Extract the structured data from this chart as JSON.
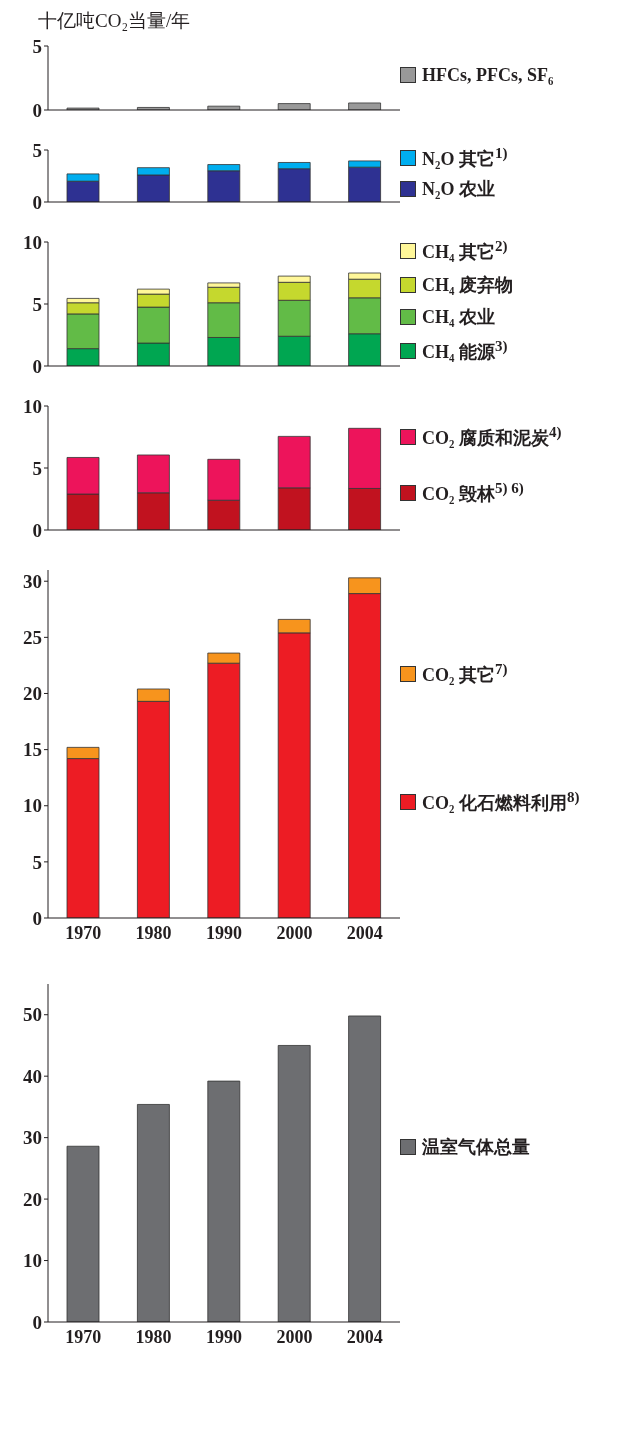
{
  "chart_data": [
    {
      "type": "bar",
      "stacked": true,
      "ylabel": "十亿吨CO₂当量/年",
      "categories": [
        "1970",
        "1980",
        "1990",
        "2000",
        "2004"
      ],
      "ylim": [
        0,
        5
      ],
      "yticks": [
        0,
        5
      ],
      "tick_labels": "y",
      "legend": "right",
      "series": [
        {
          "name": "HFCs, PFCs, SF₆",
          "color": "#999999",
          "values": [
            0.15,
            0.2,
            0.3,
            0.5,
            0.55
          ]
        }
      ]
    },
    {
      "type": "bar",
      "stacked": true,
      "categories": [
        "1970",
        "1980",
        "1990",
        "2000",
        "2004"
      ],
      "ylim": [
        0,
        5
      ],
      "yticks": [
        0,
        5
      ],
      "tick_labels": "y",
      "legend": "right",
      "series": [
        {
          "name": "N₂O 农业",
          "color": "#2e3192",
          "values": [
            2.0,
            2.6,
            3.0,
            3.2,
            3.35
          ]
        },
        {
          "name": "N₂O 其它$^{1)}$",
          "color": "#00aeef",
          "values": [
            0.7,
            0.7,
            0.6,
            0.6,
            0.6
          ]
        }
      ]
    },
    {
      "type": "bar",
      "stacked": true,
      "categories": [
        "1970",
        "1980",
        "1990",
        "2000",
        "2004"
      ],
      "ylim": [
        0,
        10
      ],
      "yticks": [
        0,
        5,
        10
      ],
      "tick_labels": "y",
      "legend": "right",
      "series": [
        {
          "name": "CH₄ 能源$^{3)}$",
          "color": "#00a651",
          "values": [
            1.4,
            1.85,
            2.3,
            2.4,
            2.6
          ]
        },
        {
          "name": "CH₄ 农业",
          "color": "#62bb47",
          "values": [
            2.8,
            2.9,
            2.8,
            2.9,
            2.9
          ]
        },
        {
          "name": "CH₄ 废弃物",
          "color": "#c5d82e",
          "values": [
            0.9,
            1.05,
            1.25,
            1.45,
            1.5
          ]
        },
        {
          "name": "CH₄ 其它$^{2)}$",
          "color": "#fff799",
          "values": [
            0.35,
            0.4,
            0.35,
            0.5,
            0.5
          ]
        }
      ]
    },
    {
      "type": "bar",
      "stacked": true,
      "categories": [
        "1970",
        "1980",
        "1990",
        "2000",
        "2004"
      ],
      "ylim": [
        0,
        10
      ],
      "yticks": [
        0,
        5,
        10
      ],
      "tick_labels": "y",
      "legend": "right",
      "series": [
        {
          "name": "CO₂ 毁林$^{5) 6)}$",
          "color": "#c1121f",
          "values": [
            2.9,
            3.0,
            2.4,
            3.4,
            3.35
          ]
        },
        {
          "name": "CO₂ 腐质和泥炭$^{4)}$",
          "color": "#ed145b",
          "values": [
            2.95,
            3.05,
            3.3,
            4.15,
            4.85
          ]
        }
      ]
    },
    {
      "type": "bar",
      "stacked": true,
      "categories": [
        "1970",
        "1980",
        "1990",
        "2000",
        "2004"
      ],
      "ylim": [
        0,
        31
      ],
      "yticks": [
        0,
        5,
        10,
        15,
        20,
        25,
        30
      ],
      "legend": "right",
      "series": [
        {
          "name": "CO₂ 化石燃料利用$^{8)}$",
          "color": "#ed1c24",
          "values": [
            14.2,
            19.3,
            22.7,
            25.4,
            28.9
          ]
        },
        {
          "name": "CO₂ 其它$^{7)}$",
          "color": "#f7941d",
          "values": [
            1.0,
            1.1,
            0.9,
            1.2,
            1.4
          ]
        }
      ]
    },
    {
      "type": "bar",
      "categories": [
        "1970",
        "1980",
        "1990",
        "2000",
        "2004"
      ],
      "ylim": [
        0,
        55
      ],
      "yticks": [
        0,
        10,
        20,
        30,
        40,
        50
      ],
      "legend": "right",
      "series": [
        {
          "name": "温室气体总量",
          "color": "#6d6e71",
          "values": [
            28.6,
            35.4,
            39.2,
            45.0,
            49.8
          ]
        }
      ]
    }
  ]
}
